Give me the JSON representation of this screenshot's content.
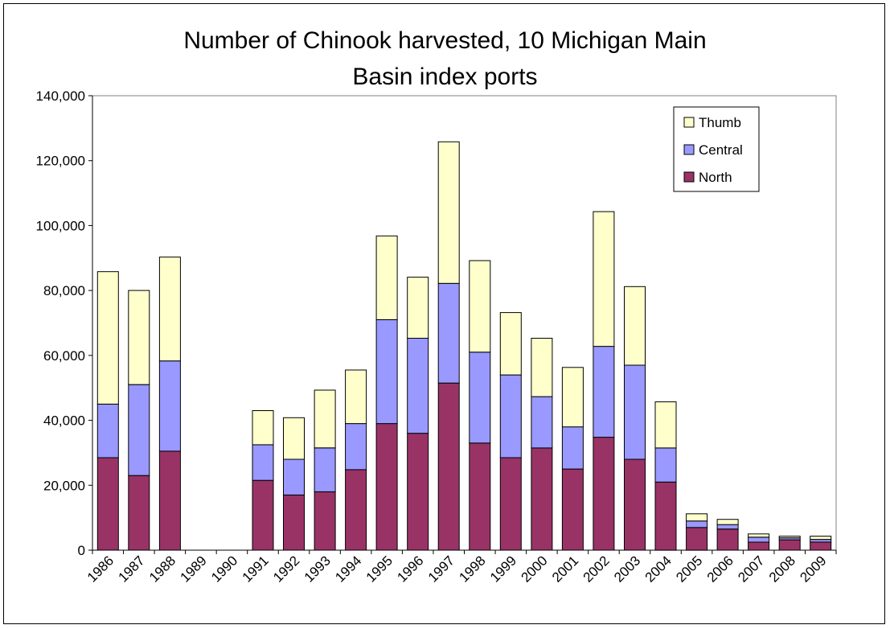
{
  "chart_data": {
    "type": "bar",
    "stacked": true,
    "title_lines": [
      "Number of Chinook harvested, 10 Michigan Main",
      "Basin index ports"
    ],
    "xlabel": "",
    "ylabel": "",
    "ylim": [
      0,
      140000
    ],
    "yticks": [
      "0",
      "20,000",
      "40,000",
      "60,000",
      "80,000",
      "100,000",
      "120,000",
      "140,000"
    ],
    "grid": false,
    "legend_placement": "top-right",
    "categories": [
      "1986",
      "1987",
      "1988",
      "1989",
      "1990",
      "1991",
      "1992",
      "1993",
      "1994",
      "1995",
      "1996",
      "1997",
      "1998",
      "1999",
      "2000",
      "2001",
      "2002",
      "2003",
      "2004",
      "2005",
      "2006",
      "2007",
      "2008",
      "2009"
    ],
    "series": [
      {
        "name": "North",
        "color": "#993366",
        "values": [
          28500,
          23000,
          30500,
          0,
          0,
          21500,
          17000,
          18000,
          24800,
          39000,
          36000,
          51500,
          33000,
          28500,
          31500,
          25000,
          34800,
          28000,
          21000,
          7000,
          6500,
          2500,
          3200,
          2500
        ]
      },
      {
        "name": "Central",
        "color": "#9999ff",
        "values": [
          16500,
          28000,
          27800,
          0,
          0,
          11000,
          11000,
          13500,
          14200,
          32000,
          29300,
          30700,
          28000,
          25500,
          15800,
          13000,
          28000,
          29000,
          10500,
          2000,
          1400,
          1500,
          600,
          800
        ]
      },
      {
        "name": "Thumb",
        "color": "#ffffcc",
        "values": [
          40800,
          29000,
          32000,
          0,
          0,
          10500,
          12800,
          17800,
          16500,
          25800,
          18800,
          43600,
          28200,
          19200,
          18000,
          18300,
          41500,
          24200,
          14200,
          2200,
          1600,
          1000,
          500,
          1000
        ]
      }
    ]
  }
}
